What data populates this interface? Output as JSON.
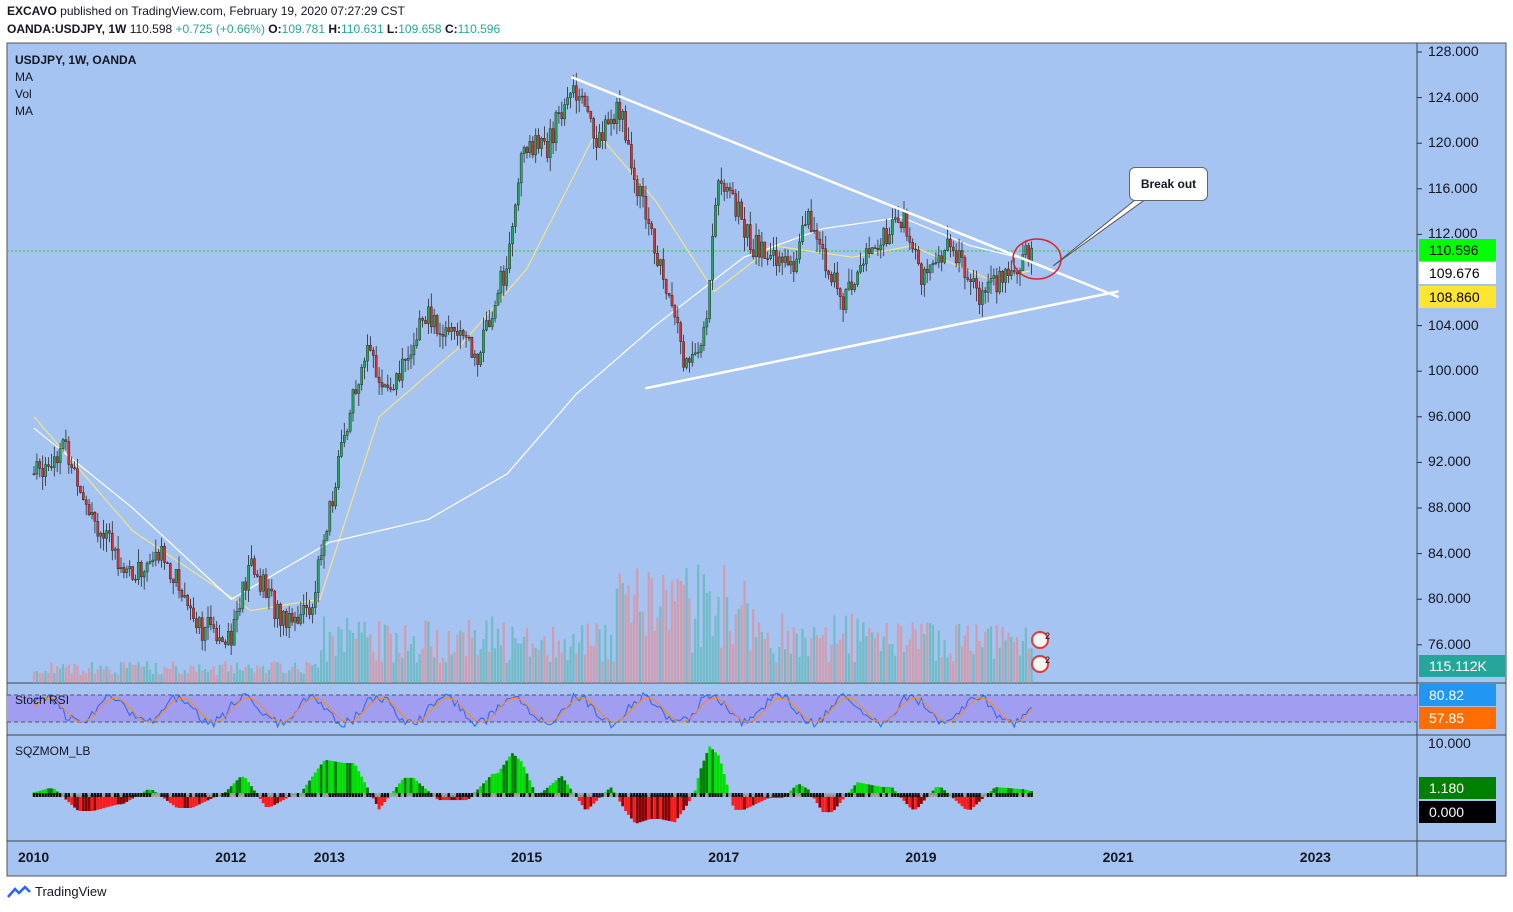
{
  "header": {
    "publisher": "EXCAVO",
    "published_text": "published on TradingView.com, February 19, 2020 07:27:29 CST",
    "symbol": "OANDA:USDJPY, 1W",
    "last": "110.598",
    "change": "+0.725 (+0.66%)",
    "o_label": "O:",
    "o": "109.781",
    "h_label": "H:",
    "h": "110.631",
    "l_label": "L:",
    "l": "109.658",
    "c_label": "C:",
    "c": "110.596"
  },
  "legend": {
    "title": "USDJPY, 1W, OANDA",
    "ind1": "MA",
    "ind2": "Vol",
    "ind3": "MA",
    "stoch": "Stoch RSI",
    "sqz": "SQZMOM_LB"
  },
  "annotation": {
    "breakout": "Break out"
  },
  "price_labels": {
    "current": "110.596",
    "ma_white": "109.676",
    "ma_yellow": "108.860",
    "volume": "115.112K",
    "stoch_k": "80.82",
    "stoch_d": "57.85",
    "sqz_top": "10.000",
    "sqz_val": "1.180",
    "sqz_zero": "0.000"
  },
  "colors": {
    "bg_chart": "#a5c4f2",
    "up": "#26a65b",
    "down": "#d9322e",
    "ma_yellow": "#f2e48a",
    "ma_white": "#ffffff",
    "stoch_band": "#a19ef2",
    "price_green": "#00ff00",
    "price_yellow": "#ffe433",
    "vol_teal": "#26a69a",
    "stoch_blue": "#2196f3",
    "stoch_orange": "#ff6d00"
  },
  "footer": {
    "brand": "TradingView"
  },
  "chart_data": {
    "type": "candlestick",
    "title": "USDJPY, 1W, OANDA",
    "y_ticks": [
      "128.000",
      "124.000",
      "120.000",
      "116.000",
      "112.000",
      "104.000",
      "100.000",
      "96.000",
      "92.000",
      "88.000",
      "84.000",
      "80.000",
      "76.000"
    ],
    "ylim": [
      72,
      128
    ],
    "x_ticks": [
      "2010",
      "2012",
      "2013",
      "2015",
      "2017",
      "2019",
      "2021",
      "2023"
    ],
    "price_path": [
      {
        "year": 2010.0,
        "price": 91.0
      },
      {
        "year": 2010.3,
        "price": 93.5
      },
      {
        "year": 2010.7,
        "price": 85.5
      },
      {
        "year": 2011.0,
        "price": 82.0
      },
      {
        "year": 2011.3,
        "price": 84.0
      },
      {
        "year": 2011.7,
        "price": 77.5
      },
      {
        "year": 2012.0,
        "price": 77.0
      },
      {
        "year": 2012.2,
        "price": 83.0
      },
      {
        "year": 2012.5,
        "price": 78.5
      },
      {
        "year": 2012.8,
        "price": 79.0
      },
      {
        "year": 2013.0,
        "price": 88.0
      },
      {
        "year": 2013.35,
        "price": 102.0
      },
      {
        "year": 2013.6,
        "price": 97.5
      },
      {
        "year": 2013.95,
        "price": 105.0
      },
      {
        "year": 2014.5,
        "price": 101.5
      },
      {
        "year": 2014.8,
        "price": 109.5
      },
      {
        "year": 2014.95,
        "price": 120.0
      },
      {
        "year": 2015.2,
        "price": 119.5
      },
      {
        "year": 2015.45,
        "price": 125.5
      },
      {
        "year": 2015.7,
        "price": 120.5
      },
      {
        "year": 2015.95,
        "price": 123.0
      },
      {
        "year": 2016.1,
        "price": 117.0
      },
      {
        "year": 2016.45,
        "price": 106.5
      },
      {
        "year": 2016.6,
        "price": 101.0
      },
      {
        "year": 2016.8,
        "price": 103.5
      },
      {
        "year": 2016.95,
        "price": 117.5
      },
      {
        "year": 2017.3,
        "price": 111.0
      },
      {
        "year": 2017.7,
        "price": 109.5
      },
      {
        "year": 2017.85,
        "price": 113.5
      },
      {
        "year": 2018.2,
        "price": 106.0
      },
      {
        "year": 2018.45,
        "price": 110.0
      },
      {
        "year": 2018.8,
        "price": 113.5
      },
      {
        "year": 2019.0,
        "price": 108.5
      },
      {
        "year": 2019.3,
        "price": 111.5
      },
      {
        "year": 2019.6,
        "price": 106.0
      },
      {
        "year": 2019.85,
        "price": 108.5
      },
      {
        "year": 2020.13,
        "price": 110.6
      }
    ],
    "ma_yellow_path": [
      {
        "year": 2010.0,
        "price": 96.0
      },
      {
        "year": 2011.0,
        "price": 86.0
      },
      {
        "year": 2012.2,
        "price": 79.0
      },
      {
        "year": 2012.9,
        "price": 80.0
      },
      {
        "year": 2013.5,
        "price": 96.0
      },
      {
        "year": 2014.3,
        "price": 102.0
      },
      {
        "year": 2015.0,
        "price": 109.0
      },
      {
        "year": 2015.7,
        "price": 121.0
      },
      {
        "year": 2016.3,
        "price": 115.0
      },
      {
        "year": 2016.9,
        "price": 107.0
      },
      {
        "year": 2017.5,
        "price": 111.0
      },
      {
        "year": 2018.3,
        "price": 110.0
      },
      {
        "year": 2018.9,
        "price": 111.0
      },
      {
        "year": 2019.7,
        "price": 108.0
      },
      {
        "year": 2020.13,
        "price": 108.86
      }
    ],
    "ma_white_path": [
      {
        "year": 2010.0,
        "price": 95.0
      },
      {
        "year": 2011.0,
        "price": 88.0
      },
      {
        "year": 2012.0,
        "price": 80.0
      },
      {
        "year": 2013.0,
        "price": 85.0
      },
      {
        "year": 2014.0,
        "price": 87.0
      },
      {
        "year": 2014.8,
        "price": 91.0
      },
      {
        "year": 2015.5,
        "price": 98.0
      },
      {
        "year": 2016.3,
        "price": 104.0
      },
      {
        "year": 2017.2,
        "price": 110.0
      },
      {
        "year": 2018.0,
        "price": 112.5
      },
      {
        "year": 2018.8,
        "price": 113.5
      },
      {
        "year": 2019.5,
        "price": 111.0
      },
      {
        "year": 2020.13,
        "price": 109.676
      }
    ],
    "trendlines": [
      {
        "name": "upper",
        "from": {
          "year": 2015.45,
          "price": 125.8
        },
        "to": {
          "year": 2021.0,
          "price": 106.5
        }
      },
      {
        "name": "lower",
        "from": {
          "year": 2016.2,
          "price": 98.5
        },
        "to": {
          "year": 2021.0,
          "price": 107.0
        }
      }
    ],
    "current_price": 110.596
  }
}
